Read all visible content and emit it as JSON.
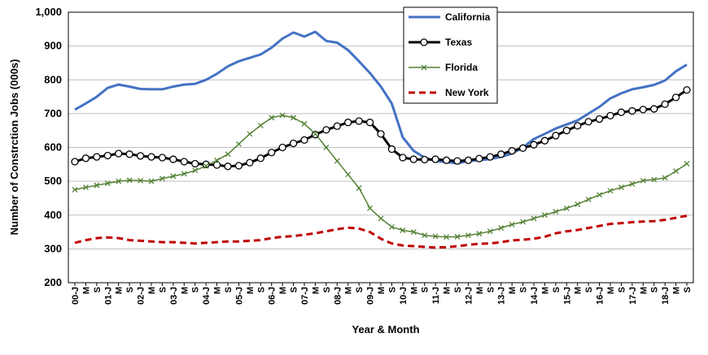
{
  "chart_data": {
    "type": "line",
    "xlabel": "Year & Month",
    "ylabel": "Number of Constrction Jobs (000s)",
    "ylim": [
      200,
      1000
    ],
    "yticks": [
      200,
      300,
      400,
      500,
      600,
      700,
      800,
      900,
      1000
    ],
    "ytick_labels": [
      "200",
      "300",
      "400",
      "500",
      "600",
      "700",
      "800",
      "900",
      "1,000"
    ],
    "grid": "horizontal",
    "legend_position": "top-center",
    "x_tick_labels": [
      "00-J",
      "M",
      "S",
      "01-J",
      "M",
      "S",
      "02-J",
      "M",
      "S",
      "03-J",
      "M",
      "S",
      "04-J",
      "M",
      "S",
      "05-J",
      "M",
      "S",
      "06-J",
      "M",
      "S",
      "07-J",
      "M",
      "S",
      "08-J",
      "M",
      "S",
      "09-J",
      "M",
      "S",
      "10-J",
      "M",
      "S",
      "11-J",
      "M",
      "S",
      "12-J",
      "M",
      "S",
      "13-J",
      "M",
      "S",
      "14-J",
      "M",
      "S",
      "15-J",
      "M",
      "S",
      "16-J",
      "M",
      "S",
      "17-J",
      "M",
      "S",
      "18-J",
      "M",
      "S"
    ],
    "x": [
      "2000-01",
      "2000-05",
      "2000-09",
      "2001-01",
      "2001-05",
      "2001-09",
      "2002-01",
      "2002-05",
      "2002-09",
      "2003-01",
      "2003-05",
      "2003-09",
      "2004-01",
      "2004-05",
      "2004-09",
      "2005-01",
      "2005-05",
      "2005-09",
      "2006-01",
      "2006-05",
      "2006-09",
      "2007-01",
      "2007-05",
      "2007-09",
      "2008-01",
      "2008-05",
      "2008-09",
      "2009-01",
      "2009-05",
      "2009-09",
      "2010-01",
      "2010-05",
      "2010-09",
      "2011-01",
      "2011-05",
      "2011-09",
      "2012-01",
      "2012-05",
      "2012-09",
      "2013-01",
      "2013-05",
      "2013-09",
      "2014-01",
      "2014-05",
      "2014-09",
      "2015-01",
      "2015-05",
      "2015-09",
      "2016-01",
      "2016-05",
      "2016-09",
      "2017-01",
      "2017-05",
      "2017-09",
      "2018-01",
      "2018-05",
      "2018-09"
    ],
    "series": [
      {
        "name": "California",
        "color": "#4472C4",
        "marker": "none",
        "dash": "solid",
        "values": [
          712,
          730,
          750,
          776,
          786,
          780,
          773,
          772,
          772,
          780,
          786,
          788,
          800,
          818,
          840,
          855,
          865,
          875,
          895,
          922,
          940,
          928,
          942,
          915,
          910,
          888,
          855,
          820,
          780,
          730,
          630,
          590,
          570,
          560,
          557,
          553,
          560,
          562,
          566,
          572,
          582,
          600,
          625,
          640,
          656,
          668,
          680,
          700,
          720,
          745,
          760,
          772,
          778,
          785,
          798,
          825,
          845
        ]
      },
      {
        "name": "Texas",
        "color": "#000000",
        "marker": "circle",
        "dash": "solid",
        "values": [
          558,
          568,
          572,
          576,
          582,
          580,
          575,
          572,
          570,
          565,
          558,
          552,
          550,
          548,
          544,
          546,
          555,
          568,
          585,
          600,
          612,
          622,
          638,
          652,
          663,
          674,
          678,
          674,
          640,
          595,
          570,
          565,
          564,
          565,
          562,
          560,
          562,
          567,
          572,
          580,
          590,
          598,
          608,
          620,
          635,
          650,
          664,
          676,
          684,
          694,
          704,
          708,
          712,
          714,
          728,
          748,
          770
        ]
      },
      {
        "name": "Florida",
        "color": "#548235",
        "marker": "x",
        "dash": "solid",
        "values": [
          475,
          482,
          488,
          494,
          500,
          503,
          502,
          500,
          508,
          515,
          522,
          532,
          545,
          562,
          580,
          610,
          640,
          665,
          688,
          695,
          688,
          670,
          640,
          600,
          560,
          520,
          480,
          420,
          390,
          365,
          355,
          350,
          340,
          337,
          335,
          336,
          340,
          345,
          352,
          362,
          372,
          380,
          390,
          400,
          410,
          420,
          432,
          446,
          460,
          472,
          482,
          492,
          502,
          505,
          510,
          530,
          552
        ]
      },
      {
        "name": "New York",
        "color": "#C00000",
        "marker": "none",
        "dash": "dashed",
        "values": [
          318,
          326,
          332,
          334,
          332,
          326,
          324,
          322,
          320,
          320,
          318,
          316,
          318,
          320,
          322,
          322,
          324,
          326,
          332,
          336,
          338,
          342,
          346,
          352,
          358,
          363,
          360,
          350,
          330,
          316,
          310,
          308,
          306,
          304,
          305,
          308,
          312,
          315,
          316,
          320,
          325,
          327,
          330,
          336,
          346,
          352,
          356,
          362,
          368,
          374,
          376,
          379,
          381,
          382,
          386,
          392,
          398
        ]
      }
    ]
  }
}
